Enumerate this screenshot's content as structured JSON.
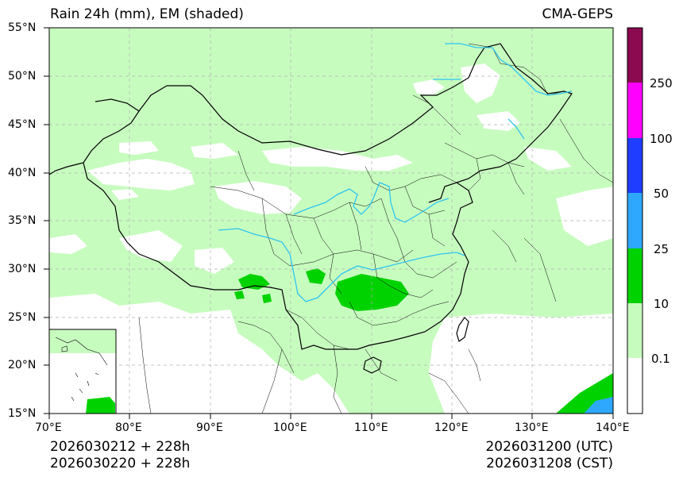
{
  "header": {
    "title_left": "Rain 24h (mm), EM (shaded)",
    "title_right": "CMA-GEPS"
  },
  "footer": {
    "init_utc": "2026030212 + 228h",
    "init_cst": "2026030220 + 228h",
    "valid_utc": "2026031200 (UTC)",
    "valid_cst": "2026031208 (CST)"
  },
  "map": {
    "lat_labels": [
      "55°N",
      "50°N",
      "45°N",
      "40°N",
      "35°N",
      "30°N",
      "25°N",
      "20°N",
      "15°N"
    ],
    "lon_labels": [
      "70°E",
      "80°E",
      "90°E",
      "100°E",
      "110°E",
      "120°E",
      "130°E",
      "140°E"
    ],
    "extent": {
      "lon_min": 70,
      "lon_max": 140,
      "lat_min": 15,
      "lat_max": 55
    },
    "colors": {
      "light_green": "#c7fcbf",
      "green": "#00d200",
      "river": "#2ec5f0",
      "border": "#000000"
    }
  },
  "colorbar": {
    "labels": [
      "0.1",
      "10",
      "25",
      "50",
      "100",
      "250"
    ],
    "colors": [
      "#ffffff",
      "#c7fcbf",
      "#00d200",
      "#2ea8ff",
      "#1f3dff",
      "#ff00ff",
      "#8b0a50"
    ]
  }
}
